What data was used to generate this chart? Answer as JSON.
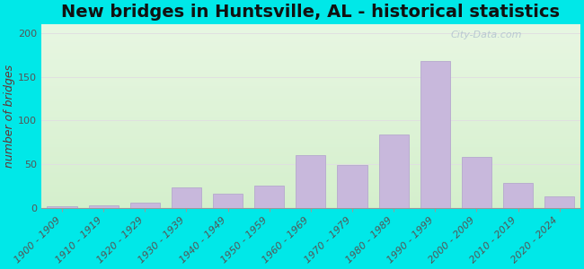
{
  "title": "New bridges in Huntsville, AL - historical statistics",
  "ylabel": "number of bridges",
  "categories": [
    "1900 - 1909",
    "1910 - 1919",
    "1920 - 1929",
    "1930 - 1939",
    "1940 - 1949",
    "1950 - 1959",
    "1960 - 1969",
    "1970 - 1979",
    "1980 - 1989",
    "1990 - 1999",
    "2000 - 2009",
    "2010 - 2019",
    "2020 - 2024"
  ],
  "values": [
    2,
    3,
    6,
    23,
    16,
    25,
    60,
    49,
    84,
    168,
    58,
    28,
    13
  ],
  "bar_color": "#c8b8dc",
  "bar_edge_color": "#b0a0cc",
  "ylim": [
    0,
    210
  ],
  "yticks": [
    0,
    50,
    100,
    150,
    200
  ],
  "background_outer": "#00e8e8",
  "grid_color": "#e0e0e0",
  "title_fontsize": 14,
  "axis_label_fontsize": 9,
  "tick_label_fontsize": 8,
  "watermark": "City-Data.com"
}
